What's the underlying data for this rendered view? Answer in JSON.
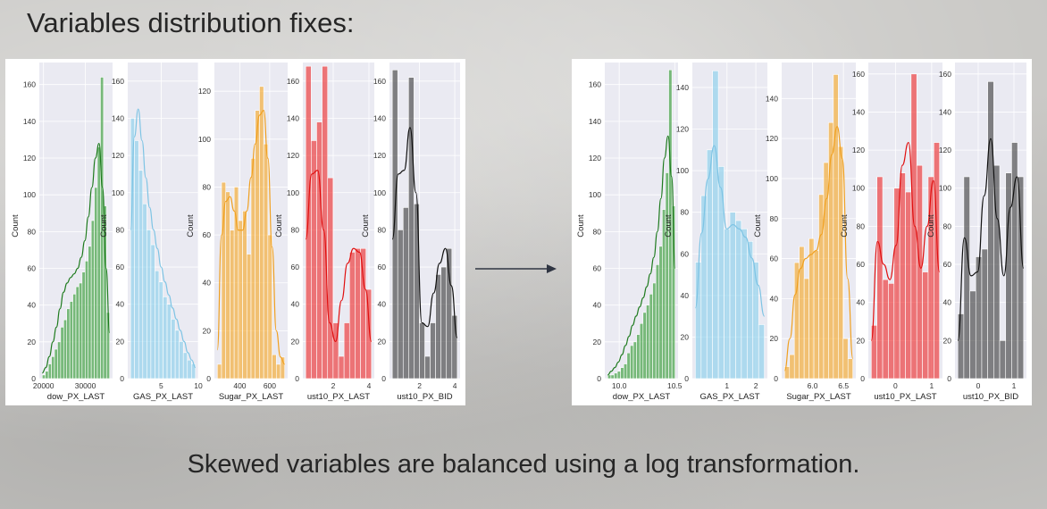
{
  "page": {
    "title": "Variables distribution fixes:",
    "caption": "Skewed variables are balanced using a log transformation."
  },
  "colors": {
    "dow": "#2e9a2e",
    "gas": "#87ceeb",
    "sugar": "#f5a623",
    "ust_last": "#ee2a2a",
    "ust_bid": "#3c3c3c",
    "plot_bg": "#eaeaf2",
    "grid": "#ffffff"
  },
  "chart_data": [
    {
      "panel": "before",
      "type": "histogram",
      "subplots": [
        {
          "xlabel": "dow_PX_LAST",
          "ylabel": "Count",
          "color": "dow",
          "xlim": [
            19000,
            36500
          ],
          "ylim": [
            0,
            172
          ],
          "xticks": [
            20000,
            30000
          ],
          "xtick_labels": [
            "20000",
            "30000"
          ],
          "yticks": [
            0,
            20,
            40,
            60,
            80,
            100,
            120,
            140,
            160
          ],
          "values": [
            2,
            4,
            8,
            12,
            16,
            20,
            28,
            32,
            38,
            42,
            46,
            50,
            52,
            58,
            64,
            72,
            86,
            104,
            126,
            164,
            94,
            36
          ],
          "kde": [
            3,
            6,
            12,
            20,
            28,
            38,
            47,
            52,
            55,
            57,
            60,
            66,
            75,
            88,
            104,
            120,
            128,
            104,
            60,
            25
          ]
        },
        {
          "xlabel": "GAS_PX_LAST",
          "ylabel": "Count",
          "color": "gas",
          "xlim": [
            0.5,
            10
          ],
          "ylim": [
            0,
            170
          ],
          "xticks": [
            5,
            10
          ],
          "xtick_labels": [
            "5",
            "10"
          ],
          "yticks": [
            0,
            20,
            40,
            60,
            80,
            100,
            120,
            140,
            160
          ],
          "values": [
            140,
            128,
            112,
            94,
            80,
            72,
            58,
            52,
            44,
            40,
            32,
            26,
            20,
            14,
            10,
            8
          ],
          "kde": [
            80,
            130,
            145,
            128,
            108,
            92,
            80,
            70,
            60,
            52,
            45,
            38,
            32,
            26,
            20,
            14,
            10,
            6
          ]
        },
        {
          "xlabel": "Sugar_PX_LAST",
          "ylabel": "Count",
          "color": "sugar",
          "xlim": [
            230,
            720
          ],
          "ylim": [
            0,
            132
          ],
          "xticks": [
            400,
            600
          ],
          "xtick_labels": [
            "400",
            "600"
          ],
          "yticks": [
            0,
            20,
            40,
            60,
            80,
            100,
            120
          ],
          "values": [
            6,
            82,
            78,
            62,
            80,
            66,
            70,
            52,
            92,
            112,
            122,
            98,
            60,
            10,
            6,
            9
          ],
          "kde": [
            12,
            60,
            74,
            76,
            70,
            62,
            62,
            70,
            84,
            98,
            110,
            112,
            92,
            55,
            20,
            9,
            6
          ]
        },
        {
          "xlabel": "ust10_PX_LAST",
          "ylabel": "Count",
          "color": "ust_last",
          "xlim": [
            0.3,
            4.3
          ],
          "ylim": [
            0,
            170
          ],
          "xticks": [
            2,
            4
          ],
          "xtick_labels": [
            "2",
            "4"
          ],
          "yticks": [
            0,
            20,
            40,
            60,
            80,
            100,
            120,
            140,
            160
          ],
          "values": [
            168,
            128,
            138,
            168,
            108,
            30,
            12,
            30,
            68,
            70,
            70,
            48
          ],
          "kde": [
            75,
            110,
            112,
            80,
            30,
            20,
            42,
            62,
            70,
            68,
            48,
            20
          ]
        },
        {
          "xlabel": "ust10_PX_BID",
          "ylabel": "Count",
          "color": "ust_bid",
          "xlim": [
            0.3,
            4.3
          ],
          "ylim": [
            0,
            170
          ],
          "xticks": [
            2,
            4
          ],
          "xtick_labels": [
            "2",
            "4"
          ],
          "yticks": [
            0,
            20,
            40,
            60,
            80,
            100,
            120,
            140,
            160
          ],
          "values": [
            166,
            80,
            92,
            162,
            94,
            30,
            12,
            30,
            56,
            60,
            70,
            34
          ],
          "kde": [
            75,
            110,
            112,
            135,
            100,
            30,
            28,
            46,
            62,
            70,
            50,
            22
          ]
        }
      ]
    },
    {
      "panel": "after",
      "type": "histogram",
      "subplots": [
        {
          "xlabel": "dow_PX_LAST",
          "ylabel": "Count",
          "color": "dow",
          "xlim": [
            9.87,
            10.53
          ],
          "ylim": [
            0,
            172
          ],
          "xticks": [
            10.0,
            10.5
          ],
          "xtick_labels": [
            "10.0",
            "10.5"
          ],
          "yticks": [
            0,
            20,
            40,
            60,
            80,
            100,
            120,
            140,
            160
          ],
          "values": [
            2,
            2,
            3,
            4,
            6,
            8,
            14,
            18,
            20,
            24,
            30,
            36,
            40,
            46,
            52,
            62,
            72,
            92,
            112,
            168,
            94
          ],
          "kde": [
            2,
            4,
            6,
            9,
            13,
            18,
            23,
            29,
            34,
            39,
            44,
            50,
            57,
            66,
            80,
            98,
            120,
            132,
            110,
            60
          ]
        },
        {
          "xlabel": "GAS_PX_LAST",
          "ylabel": "Count",
          "color": "gas",
          "xlim": [
            -0.2,
            2.4
          ],
          "ylim": [
            0,
            152
          ],
          "xticks": [
            1,
            2
          ],
          "xtick_labels": [
            "1",
            "2"
          ],
          "yticks": [
            0,
            20,
            40,
            60,
            80,
            100,
            120,
            140
          ],
          "values": [
            56,
            88,
            110,
            148,
            102,
            72,
            80,
            76,
            72,
            66,
            56,
            26
          ],
          "kde": [
            34,
            70,
            96,
            112,
            92,
            72,
            74,
            72,
            68,
            58,
            45,
            30
          ]
        },
        {
          "xlabel": "Sugar_PX_LAST",
          "ylabel": "Count",
          "color": "sugar",
          "xlim": [
            5.5,
            6.7
          ],
          "ylim": [
            0,
            158
          ],
          "xticks": [
            6.0,
            6.5
          ],
          "xtick_labels": [
            "6.0",
            "6.5"
          ],
          "yticks": [
            0,
            20,
            40,
            60,
            80,
            100,
            120,
            140
          ],
          "values": [
            6,
            12,
            58,
            66,
            50,
            70,
            64,
            92,
            108,
            128,
            152,
            116,
            20,
            10
          ],
          "kde": [
            4,
            20,
            42,
            55,
            60,
            62,
            64,
            72,
            90,
            112,
            126,
            110,
            50,
            10
          ]
        },
        {
          "xlabel": "ust10_PX_LAST",
          "ylabel": "Count",
          "color": "ust_last",
          "xlim": [
            -0.75,
            1.3
          ],
          "ylim": [
            0,
            166
          ],
          "xticks": [
            0,
            1
          ],
          "xtick_labels": [
            "0",
            "1"
          ],
          "yticks": [
            0,
            20,
            40,
            60,
            80,
            100,
            120,
            140,
            160
          ],
          "values": [
            28,
            106,
            52,
            50,
            100,
            108,
            98,
            160,
            112,
            56,
            106,
            124
          ],
          "kde": [
            20,
            72,
            60,
            52,
            70,
            112,
            124,
            80,
            58,
            80,
            104,
            56
          ]
        },
        {
          "xlabel": "ust10_PX_BID",
          "ylabel": "Count",
          "color": "ust_bid",
          "xlim": [
            -0.65,
            1.35
          ],
          "ylim": [
            0,
            166
          ],
          "xticks": [
            0,
            1
          ],
          "xtick_labels": [
            "0",
            "1"
          ],
          "yticks": [
            0,
            20,
            40,
            60,
            80,
            100,
            120,
            140,
            160
          ],
          "values": [
            34,
            106,
            46,
            64,
            68,
            156,
            112,
            20,
            108,
            124,
            106
          ],
          "kde": [
            20,
            74,
            54,
            56,
            96,
            126,
            84,
            54,
            90,
            106,
            58
          ]
        }
      ]
    }
  ]
}
